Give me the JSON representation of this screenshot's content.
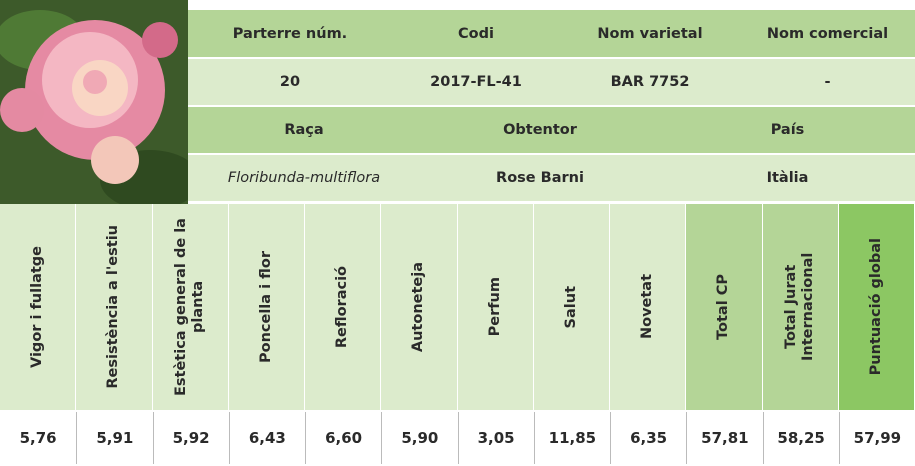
{
  "info": {
    "row1_headers": [
      "Parterre núm.",
      "Codi",
      "Nom varietal",
      "Nom comercial"
    ],
    "row1_values": [
      "20",
      "2017-FL-41",
      "BAR 7752",
      "-"
    ],
    "row2_headers": [
      "Raça",
      "Obtentor",
      "País"
    ],
    "row2_values": [
      "Floribunda-multiflora",
      "Rose Barni",
      "Itàlia"
    ]
  },
  "scores": {
    "criteria": [
      "Vigor i fullatge",
      "Resistència a l'estiu",
      "Estètica general de la planta",
      "Poncella i flor",
      "Refloració",
      "Autoneteja",
      "Perfum",
      "Salut",
      "Novetat",
      "Total CP",
      "Total Jurat Internacional",
      "Puntuació global"
    ],
    "values": [
      "5,76",
      "5,91",
      "5,92",
      "6,43",
      "6,60",
      "5,90",
      "3,05",
      "11,85",
      "6,35",
      "57,81",
      "58,25",
      "57,99"
    ]
  }
}
